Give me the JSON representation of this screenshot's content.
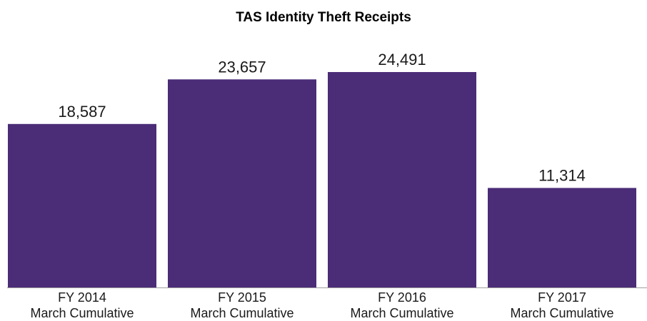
{
  "chart_data": {
    "type": "bar",
    "title": "TAS Identity Theft Receipts",
    "categories": [
      [
        "FY 2014",
        "March Cumulative"
      ],
      [
        "FY 2015",
        "March Cumulative"
      ],
      [
        "FY 2016",
        "March Cumulative"
      ],
      [
        "FY 2017",
        "March Cumulative"
      ]
    ],
    "values": [
      18587,
      23657,
      24491,
      11314
    ],
    "value_labels": [
      "18,587",
      "23,657",
      "24,491",
      "11,314"
    ],
    "xlabel": "",
    "ylabel": "",
    "ylim": [
      0,
      27000
    ],
    "grid": false,
    "legend": "none",
    "colors": {
      "bar": "#4b2c77",
      "axis": "#a0a0a0"
    }
  }
}
